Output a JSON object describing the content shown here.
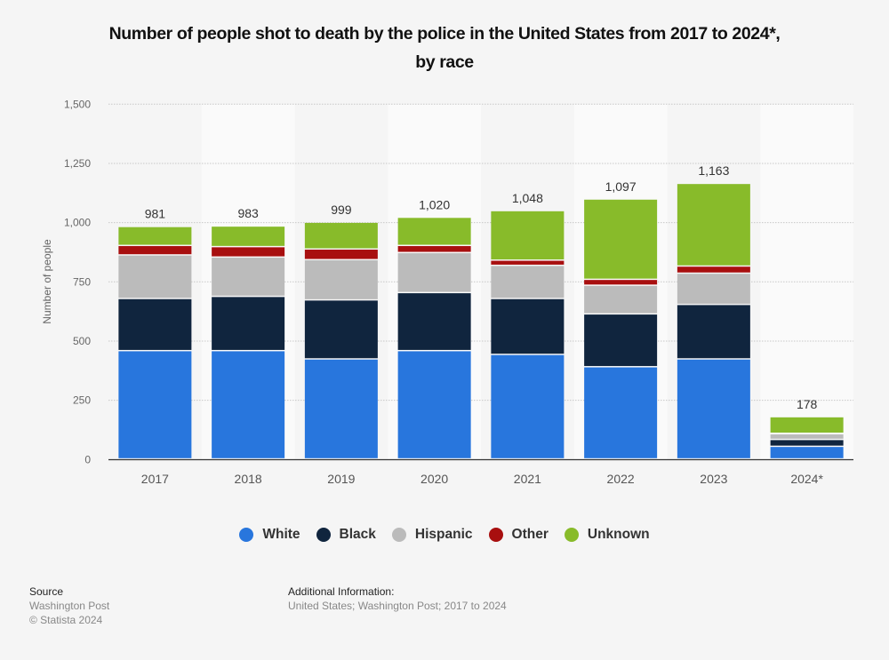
{
  "header": {
    "title_line1": "Number of people shot to death by the police in the United States from 2017 to 2024*,",
    "title_line2": "by race"
  },
  "chart_data": {
    "type": "bar",
    "stacked": true,
    "title": "Number of people shot to death by the police in the United States from 2017 to 2024*, by race",
    "xlabel": "",
    "ylabel": "Number of people",
    "ylim": [
      0,
      1500
    ],
    "yticks": [
      0,
      250,
      500,
      750,
      1000,
      1250,
      1500
    ],
    "ytick_labels": [
      "0",
      "250",
      "500",
      "750",
      "1,000",
      "1,250",
      "1,500"
    ],
    "grid": true,
    "legend_position": "bottom",
    "categories": [
      "2017",
      "2018",
      "2019",
      "2020",
      "2021",
      "2022",
      "2023",
      "2024*"
    ],
    "series": [
      {
        "name": "White",
        "color": "#2876dd",
        "values": [
          457,
          457,
          422,
          457,
          441,
          389,
          422,
          53
        ]
      },
      {
        "name": "Black",
        "color": "#10253e",
        "values": [
          220,
          229,
          249,
          245,
          236,
          223,
          230,
          29
        ]
      },
      {
        "name": "Hispanic",
        "color": "#bbbbbb",
        "values": [
          184,
          166,
          170,
          169,
          140,
          121,
          132,
          24
        ]
      },
      {
        "name": "Other",
        "color": "#a80f0f",
        "values": [
          40,
          44,
          45,
          30,
          22,
          25,
          30,
          2
        ]
      },
      {
        "name": "Unknown",
        "color": "#88bb2a",
        "values": [
          80,
          87,
          113,
          119,
          209,
          339,
          349,
          70
        ]
      }
    ],
    "totals": [
      981,
      983,
      999,
      1020,
      1048,
      1097,
      1163,
      178
    ],
    "total_labels": [
      "981",
      "983",
      "999",
      "1,020",
      "1,048",
      "1,097",
      "1,163",
      "178"
    ]
  },
  "footer": {
    "source_heading": "Source",
    "source_line1": "Washington Post",
    "source_line2": "© Statista 2024",
    "info_heading": "Additional Information:",
    "info_text": "United States; Washington Post; 2017 to 2024"
  }
}
